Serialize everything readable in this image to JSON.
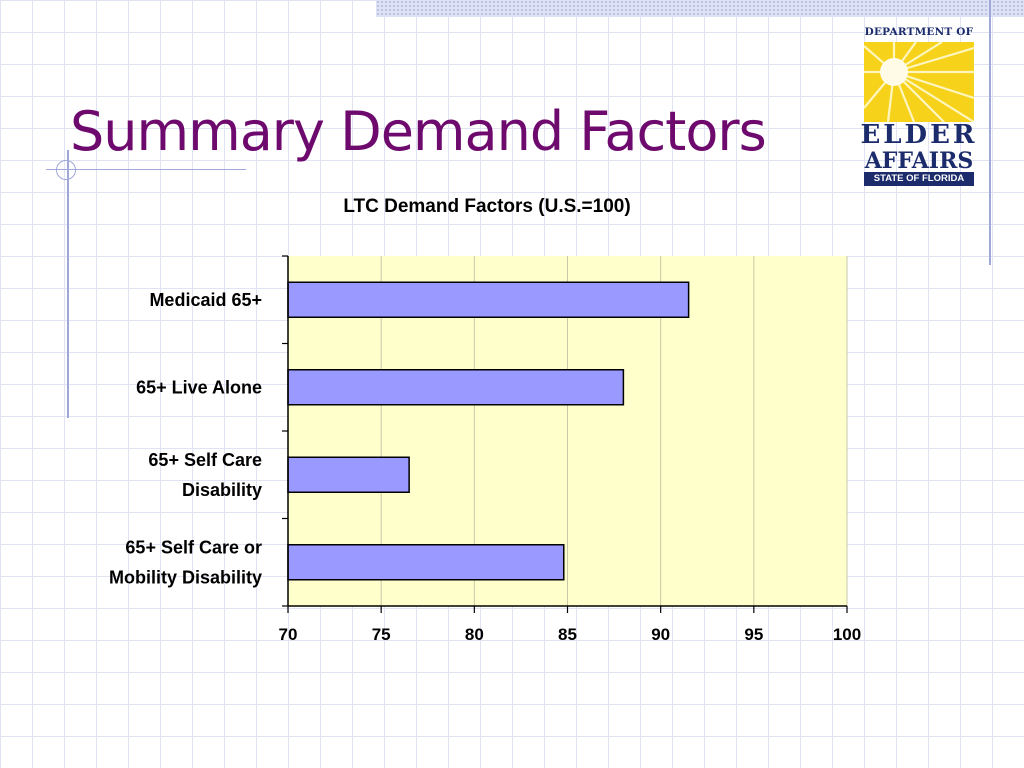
{
  "slide": {
    "title": "Summary Demand Factors"
  },
  "logo": {
    "top_text": "DEPARTMENT OF",
    "main_text": "ELDER",
    "second_text": "AFFAIRS",
    "bottom_text": "STATE OF FLORIDA",
    "colors": {
      "sun": "#f7d21a",
      "navy": "#1b2b6b"
    }
  },
  "chart_data": {
    "type": "bar",
    "orientation": "horizontal",
    "title": "LTC Demand Factors (U.S.=100)",
    "xlabel": "",
    "ylabel": "",
    "categories": [
      [
        "Medicaid 65+"
      ],
      [
        "65+ Live Alone"
      ],
      [
        "65+ Self Care",
        "Disability"
      ],
      [
        "65+ Self Care or",
        "Mobility Disability"
      ]
    ],
    "values": [
      91.5,
      88,
      76.5,
      84.8
    ],
    "xlim": [
      70,
      100
    ],
    "xticks": [
      70,
      75,
      80,
      85,
      90,
      95,
      100
    ],
    "grid": true,
    "legend": "none",
    "colors": {
      "bar": "#9999ff",
      "plot_bg": "#ffffcc",
      "grid": "#c8c8a8"
    }
  }
}
